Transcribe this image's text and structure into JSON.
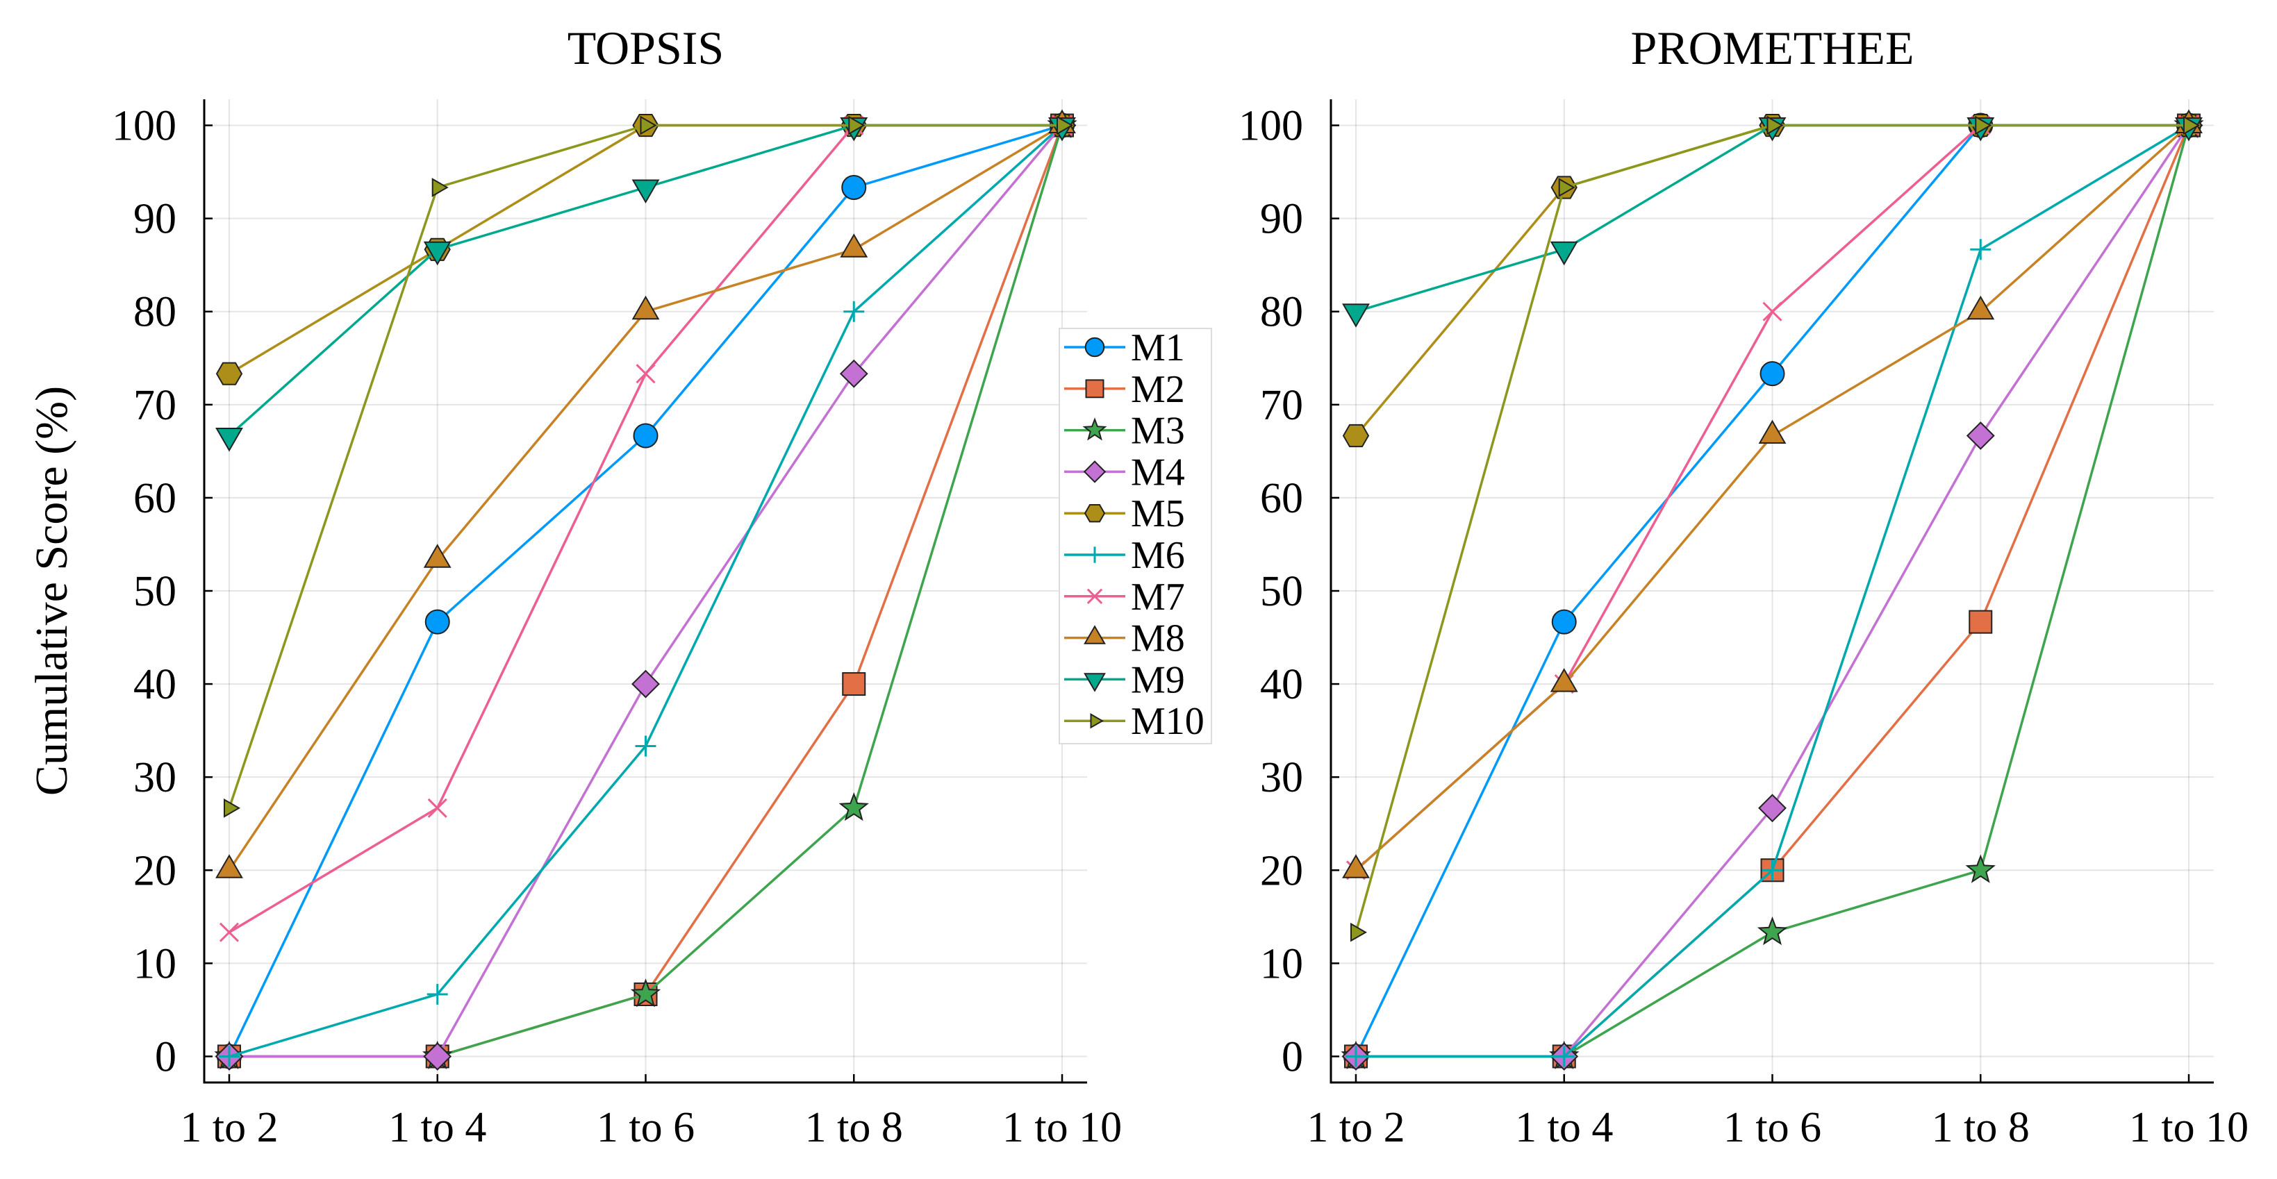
{
  "chart_data": [
    {
      "type": "line",
      "title": "TOPSIS",
      "xlabel": "",
      "ylabel": "Cumulative Score (%)",
      "categories": [
        "1 to 2",
        "1 to 4",
        "1 to 6",
        "1 to 8",
        "1 to 10"
      ],
      "yticks": [
        0,
        10,
        20,
        30,
        40,
        50,
        60,
        70,
        80,
        90,
        100
      ],
      "ylim": [
        0,
        100
      ],
      "grid": true,
      "legend": "right",
      "series": [
        {
          "name": "M1",
          "values": [
            0,
            46.67,
            66.67,
            93.33,
            100
          ]
        },
        {
          "name": "M2",
          "values": [
            0,
            0,
            6.67,
            40,
            100
          ]
        },
        {
          "name": "M3",
          "values": [
            0,
            0,
            6.67,
            26.67,
            100
          ]
        },
        {
          "name": "M4",
          "values": [
            0,
            0,
            40,
            73.33,
            100
          ]
        },
        {
          "name": "M5",
          "values": [
            73.33,
            86.67,
            100,
            100,
            100
          ]
        },
        {
          "name": "M6",
          "values": [
            0,
            6.67,
            33.33,
            80,
            100
          ]
        },
        {
          "name": "M7",
          "values": [
            13.33,
            26.67,
            73.33,
            100,
            100
          ]
        },
        {
          "name": "M8",
          "values": [
            20,
            53.33,
            80,
            86.67,
            100
          ]
        },
        {
          "name": "M9",
          "values": [
            66.67,
            86.67,
            93.33,
            100,
            100
          ]
        },
        {
          "name": "M10",
          "values": [
            26.67,
            93.33,
            100,
            100,
            100
          ]
        }
      ]
    },
    {
      "type": "line",
      "title": "PROMETHEE",
      "xlabel": "",
      "ylabel": "",
      "categories": [
        "1 to 2",
        "1 to 4",
        "1 to 6",
        "1 to 8",
        "1 to 10"
      ],
      "yticks": [
        0,
        10,
        20,
        30,
        40,
        50,
        60,
        70,
        80,
        90,
        100
      ],
      "ylim": [
        0,
        100
      ],
      "grid": true,
      "series": [
        {
          "name": "M1",
          "values": [
            0,
            46.67,
            73.33,
            100,
            100
          ]
        },
        {
          "name": "M2",
          "values": [
            0,
            0,
            20,
            46.67,
            100
          ]
        },
        {
          "name": "M3",
          "values": [
            0,
            0,
            13.33,
            20,
            100
          ]
        },
        {
          "name": "M4",
          "values": [
            0,
            0,
            26.67,
            66.67,
            100
          ]
        },
        {
          "name": "M5",
          "values": [
            66.67,
            93.33,
            100,
            100,
            100
          ]
        },
        {
          "name": "M6",
          "values": [
            0,
            0,
            20,
            86.67,
            100
          ]
        },
        {
          "name": "M7",
          "values": [
            20,
            40,
            80,
            100,
            100
          ]
        },
        {
          "name": "M8",
          "values": [
            20,
            40,
            66.67,
            80,
            100
          ]
        },
        {
          "name": "M9",
          "values": [
            80,
            86.67,
            100,
            100,
            100
          ]
        },
        {
          "name": "M10",
          "values": [
            13.33,
            93.33,
            100,
            100,
            100
          ]
        }
      ]
    }
  ],
  "series_styles": [
    {
      "color": "#009AFA",
      "marker": "circle"
    },
    {
      "color": "#E36F47",
      "marker": "square"
    },
    {
      "color": "#3EA44E",
      "marker": "star5"
    },
    {
      "color": "#C371D2",
      "marker": "diamond"
    },
    {
      "color": "#AC8E18",
      "marker": "hexagon"
    },
    {
      "color": "#00A9AD",
      "marker": "cross"
    },
    {
      "color": "#ED5E93",
      "marker": "xcross"
    },
    {
      "color": "#C68225",
      "marker": "utriangle"
    },
    {
      "color": "#00A98D",
      "marker": "dtriangle"
    },
    {
      "color": "#8E971D",
      "marker": "rtriangle"
    }
  ]
}
